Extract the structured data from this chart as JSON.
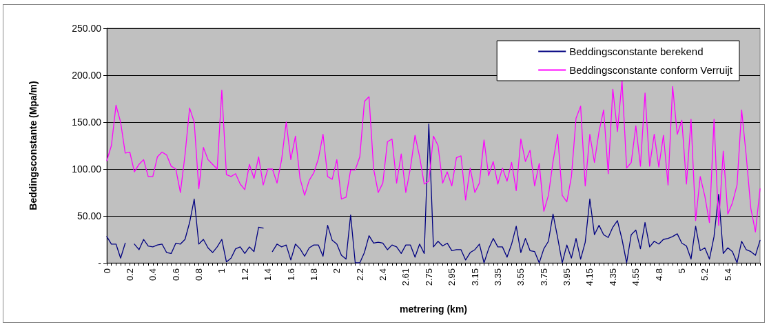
{
  "chart_data": {
    "type": "line",
    "xlabel": "metrering (km)",
    "ylabel": "Beddingsconstante (Mpa/m)",
    "categories": [
      "0",
      null,
      null,
      null,
      null,
      "0.2",
      null,
      null,
      null,
      null,
      "0.4",
      null,
      null,
      null,
      null,
      "0.6",
      null,
      null,
      null,
      null,
      "0.8",
      null,
      null,
      null,
      null,
      "1",
      null,
      null,
      null,
      null,
      "1.2",
      null,
      null,
      null,
      null,
      "1.4",
      null,
      null,
      null,
      null,
      "1.6",
      null,
      null,
      null,
      null,
      "1.8",
      null,
      null,
      null,
      null,
      "2",
      null,
      null,
      null,
      null,
      "2.2",
      null,
      null,
      null,
      null,
      "2.4",
      null,
      null,
      null,
      null,
      "2.61",
      null,
      null,
      null,
      null,
      "2.75",
      null,
      null,
      null,
      null,
      "2.95",
      null,
      null,
      null,
      null,
      "3.15",
      null,
      null,
      null,
      null,
      "3.35",
      null,
      null,
      null,
      null,
      "3.55",
      null,
      null,
      null,
      null,
      "3.75",
      null,
      null,
      null,
      null,
      "3.95",
      null,
      null,
      null,
      null,
      "4.15",
      null,
      null,
      null,
      null,
      "4.35",
      null,
      null,
      null,
      null,
      "4.55",
      null,
      null,
      null,
      null,
      "4.8",
      null,
      null,
      null,
      null,
      "5",
      null,
      null,
      null,
      null,
      "5.2",
      null,
      null,
      null,
      null,
      "5.4",
      null,
      null,
      null,
      null,
      null,
      null,
      null
    ],
    "series": [
      {
        "name": "Beddingsconstante berekend",
        "color": "#000080",
        "values": [
          28,
          20,
          20,
          5,
          21,
          null,
          20,
          14,
          25,
          18,
          17,
          19,
          20,
          11,
          10,
          21,
          20,
          25,
          43,
          68,
          20,
          25,
          16,
          11,
          17,
          25,
          1,
          5,
          15,
          17,
          10,
          17,
          12,
          38,
          37,
          null,
          12,
          20,
          17,
          19,
          3,
          20,
          15,
          7,
          16,
          19,
          19,
          7,
          40,
          24,
          20,
          8,
          4,
          51,
          0,
          0,
          11,
          29,
          21,
          22,
          21,
          14,
          19,
          17,
          10,
          19,
          19,
          6,
          20,
          10,
          148,
          17,
          23,
          18,
          21,
          13,
          14,
          14,
          3,
          11,
          14,
          20,
          0,
          15,
          26,
          17,
          17,
          6,
          20,
          39,
          11,
          26,
          13,
          12,
          0,
          15,
          23,
          52,
          27,
          0,
          19,
          5,
          26,
          4,
          22,
          68,
          30,
          40,
          30,
          27,
          38,
          45,
          25,
          0,
          30,
          35,
          15,
          43,
          17,
          23,
          20,
          25,
          26,
          28,
          31,
          21,
          18,
          4,
          39,
          13,
          16,
          4,
          28,
          73,
          10,
          16,
          12,
          0,
          23,
          14,
          12,
          8,
          24
        ]
      },
      {
        "name": "Beddingsconstante conform Verruijt",
        "color": "#ff00ff",
        "values": [
          109,
          125,
          168,
          150,
          117,
          118,
          97,
          105,
          110,
          92,
          92,
          113,
          118,
          115,
          103,
          100,
          75,
          115,
          165,
          150,
          79,
          123,
          110,
          105,
          100,
          184,
          94,
          92,
          95,
          84,
          78,
          105,
          90,
          113,
          83,
          100,
          100,
          85,
          110,
          150,
          110,
          135,
          90,
          72,
          88,
          96,
          111,
          137,
          92,
          89,
          110,
          68,
          70,
          99,
          99,
          113,
          172,
          177,
          100,
          75,
          85,
          129,
          132,
          85,
          116,
          75,
          101,
          136,
          113,
          84,
          87,
          135,
          125,
          85,
          97,
          82,
          112,
          114,
          67,
          101,
          75,
          85,
          131,
          93,
          108,
          84,
          101,
          87,
          107,
          77,
          132,
          108,
          120,
          82,
          106,
          55,
          72,
          108,
          137,
          72,
          65,
          92,
          154,
          167,
          82,
          137,
          107,
          140,
          163,
          95,
          185,
          140,
          194,
          101,
          107,
          146,
          103,
          181,
          103,
          137,
          102,
          136,
          83,
          188,
          137,
          152,
          84,
          153,
          45,
          92,
          71,
          43,
          153,
          40,
          119,
          52,
          64,
          83,
          163,
          114,
          58,
          33,
          79
        ]
      }
    ],
    "ylim": [
      0,
      250
    ],
    "yticks": [
      {
        "value": 0,
        "label": "-"
      },
      {
        "value": 50,
        "label": "50.00"
      },
      {
        "value": 100,
        "label": "100.00"
      },
      {
        "value": 150,
        "label": "150.00"
      },
      {
        "value": 200,
        "label": "200.00"
      },
      {
        "value": 250,
        "label": "250.00"
      }
    ],
    "grid": "y",
    "legend": "top right",
    "marker": "none",
    "line_style": "solid"
  }
}
